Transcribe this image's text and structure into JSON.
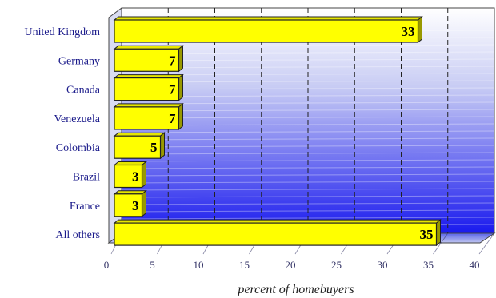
{
  "chart_data": {
    "type": "bar",
    "orientation": "horizontal",
    "categories": [
      "United Kingdom",
      "Germany",
      "Canada",
      "Venezuela",
      "Colombia",
      "Brazil",
      "France",
      "All others"
    ],
    "values": [
      33,
      7,
      7,
      7,
      5,
      3,
      3,
      35
    ],
    "xlabel": "percent of homebuyers",
    "xlim": [
      0,
      40
    ],
    "xticks": [
      "0",
      "5",
      "10",
      "15",
      "20",
      "25",
      "30",
      "35",
      "40"
    ],
    "grid": true,
    "legend": "none",
    "colors": {
      "bar_fill": "#ffff00",
      "bar_stroke": "#222222",
      "background_top": "#ffffff",
      "background_bottom": "#1a1aee",
      "category_text": "#1a1a8a"
    }
  }
}
